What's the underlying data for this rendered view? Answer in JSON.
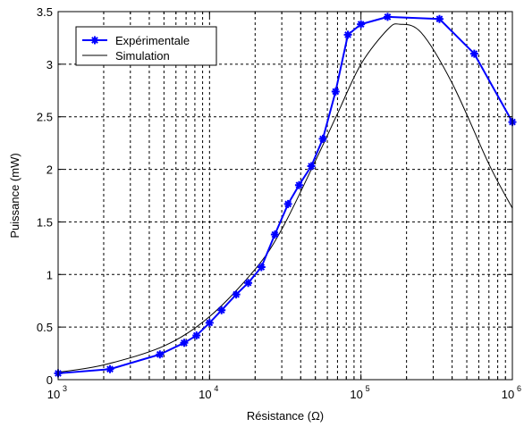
{
  "chart_data": {
    "type": "line",
    "title": "",
    "xlabel": "Résistance (Ω)",
    "ylabel": "Puissance (mW)",
    "xscale": "log",
    "xlim": [
      1000,
      1000000
    ],
    "ylim": [
      0,
      3.5
    ],
    "grid": true,
    "grid_style": "dashed",
    "legend_position": "top-left",
    "x_ticks": [
      {
        "base": "10",
        "exp": "3",
        "value": 1000
      },
      {
        "base": "10",
        "exp": "4",
        "value": 10000
      },
      {
        "base": "10",
        "exp": "5",
        "value": 100000
      },
      {
        "base": "10",
        "exp": "6",
        "value": 1000000
      }
    ],
    "y_ticks": [
      {
        "label": "0",
        "value": 0
      },
      {
        "label": "0.5",
        "value": 0.5
      },
      {
        "label": "1",
        "value": 1
      },
      {
        "label": "1.5",
        "value": 1.5
      },
      {
        "label": "2",
        "value": 2
      },
      {
        "label": "2.5",
        "value": 2.5
      },
      {
        "label": "3",
        "value": 3
      },
      {
        "label": "3.5",
        "value": 3.5
      }
    ],
    "series": [
      {
        "name": "Expérimentale",
        "color": "#0000ff",
        "marker": "star",
        "x": [
          1000,
          2200,
          4700,
          6800,
          8200,
          10000,
          12000,
          15000,
          18000,
          22000,
          27000,
          33000,
          39000,
          47000,
          56000,
          68000,
          82000,
          100000,
          150000,
          330000,
          560000,
          1000000
        ],
        "y": [
          0.06,
          0.1,
          0.24,
          0.35,
          0.42,
          0.54,
          0.66,
          0.81,
          0.92,
          1.07,
          1.38,
          1.67,
          1.85,
          2.03,
          2.29,
          2.74,
          3.28,
          3.38,
          3.45,
          3.43,
          3.1,
          2.45
        ]
      },
      {
        "name": "Simulation",
        "color": "#000000",
        "marker": "none",
        "x": [
          1000,
          2000,
          5000,
          10000,
          20000,
          30000,
          50000,
          70000,
          100000,
          150000,
          180000,
          250000,
          400000,
          700000,
          1000000
        ],
        "y": [
          0.07,
          0.14,
          0.32,
          0.6,
          1.05,
          1.43,
          2.08,
          2.53,
          3.0,
          3.33,
          3.38,
          3.3,
          2.82,
          2.05,
          1.63
        ]
      }
    ]
  }
}
